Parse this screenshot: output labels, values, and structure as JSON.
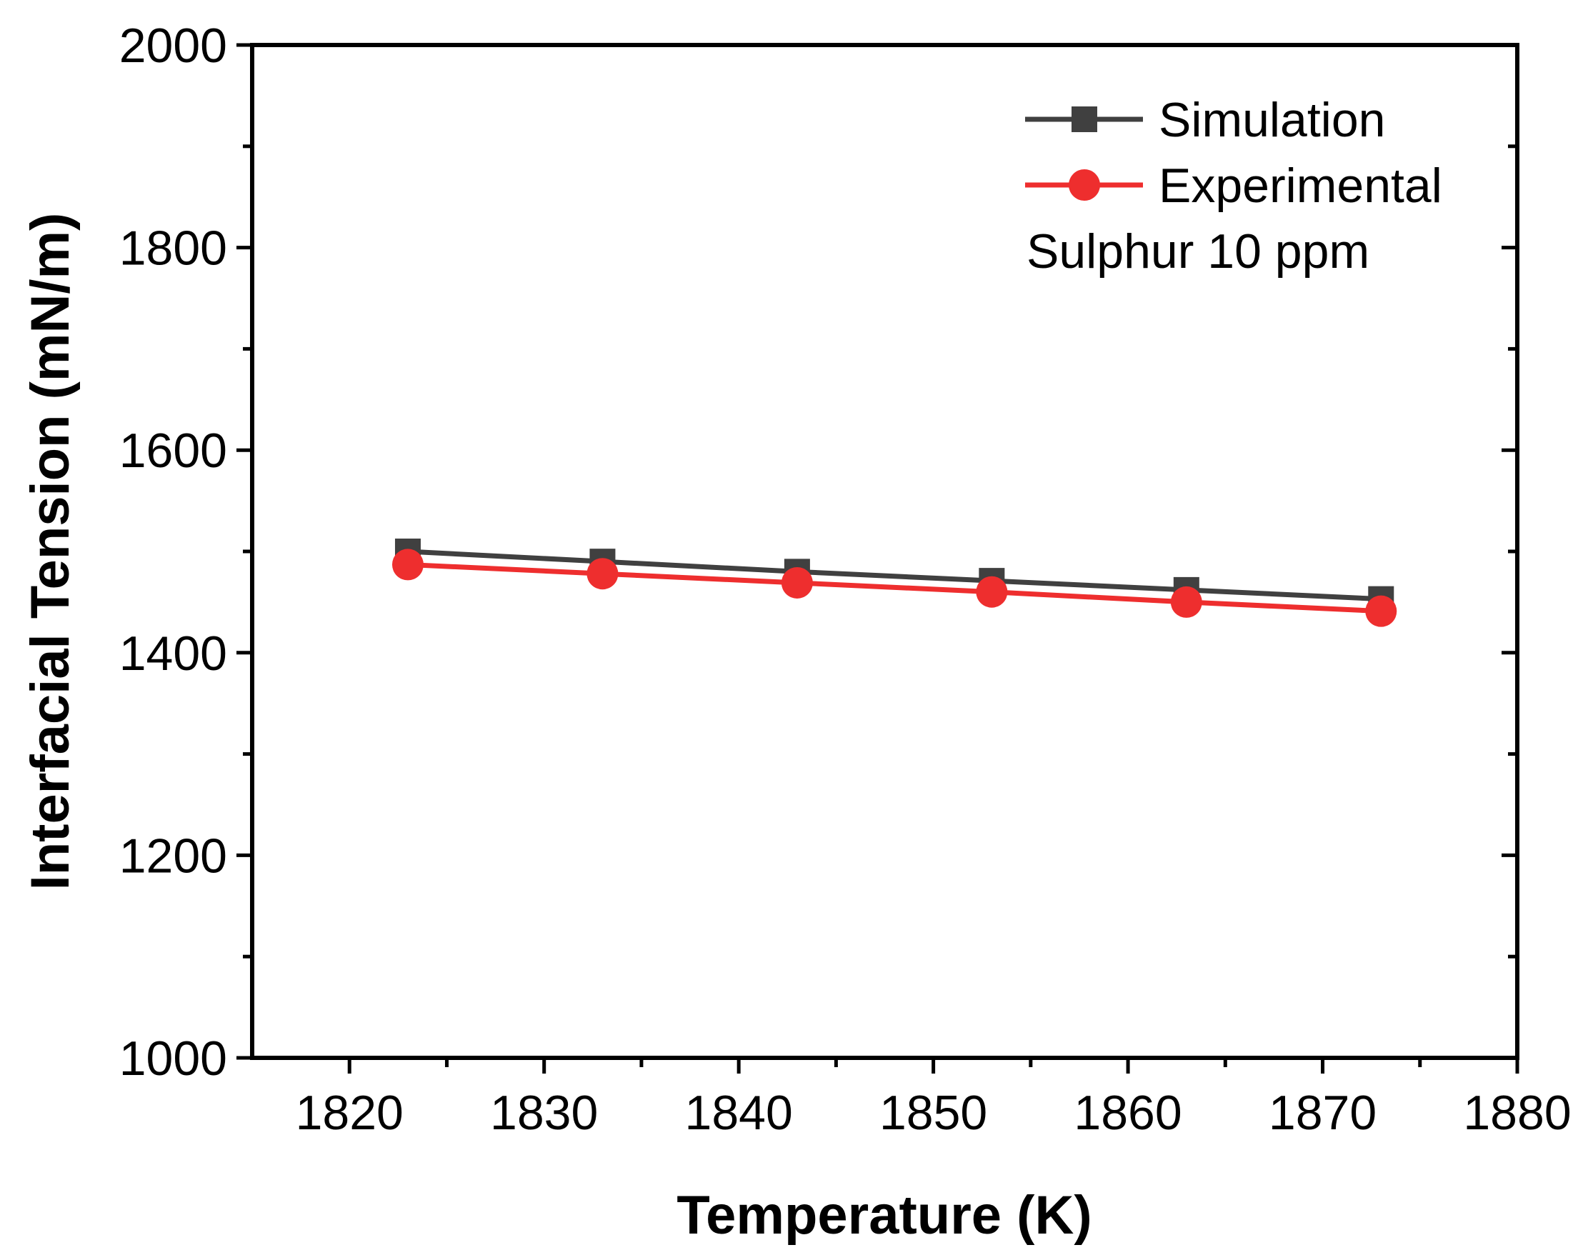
{
  "chart_data": {
    "type": "line",
    "title": "",
    "xlabel": "Temperature (K)",
    "ylabel": "Interfacial Tension (mN/m)",
    "xlim": [
      1815,
      1880
    ],
    "ylim": [
      1000,
      2000
    ],
    "x_ticks": [
      1820,
      1830,
      1840,
      1850,
      1860,
      1870,
      1880
    ],
    "y_ticks": [
      1000,
      1200,
      1400,
      1600,
      1800,
      2000
    ],
    "grid": false,
    "legend_position": "top-right",
    "annotation": "Sulphur 10 ppm",
    "series": [
      {
        "name": "Simulation",
        "color": "#404040",
        "marker": "square",
        "x": [
          1823,
          1833,
          1843,
          1853,
          1863,
          1873
        ],
        "values": [
          1500,
          1490,
          1480,
          1471,
          1462,
          1453
        ]
      },
      {
        "name": "Experimental",
        "color": "#ee2e2e",
        "marker": "circle",
        "x": [
          1823,
          1833,
          1843,
          1853,
          1863,
          1873
        ],
        "values": [
          1487,
          1478,
          1469,
          1460,
          1450,
          1441
        ]
      }
    ]
  }
}
